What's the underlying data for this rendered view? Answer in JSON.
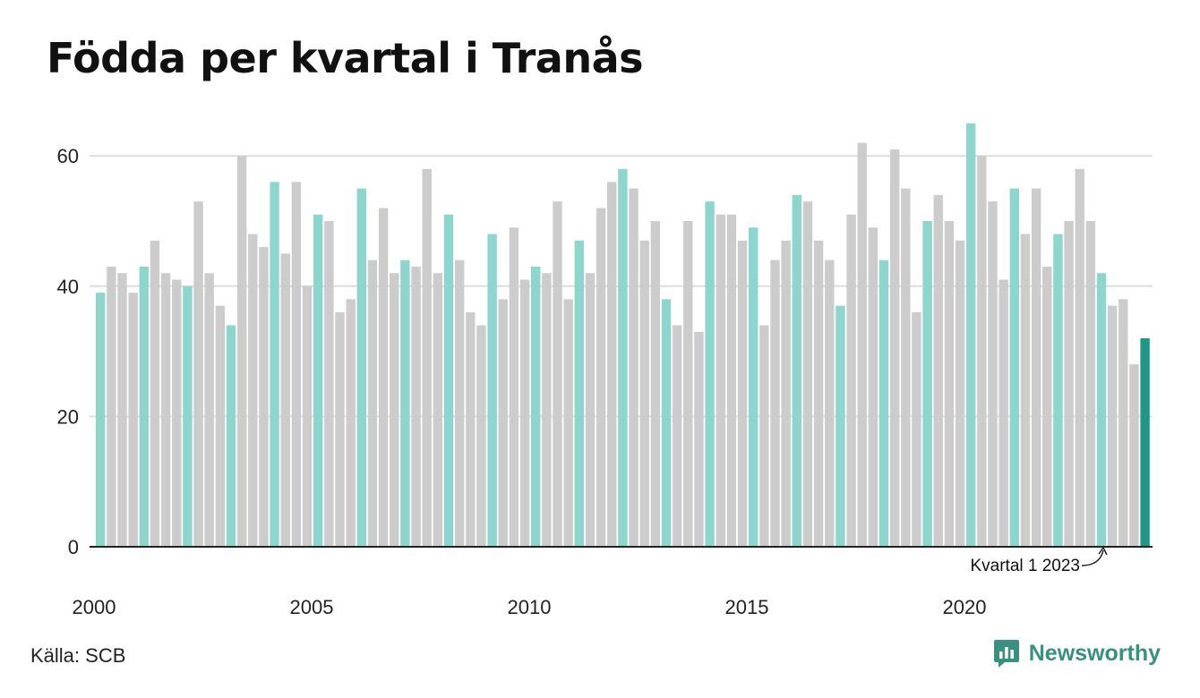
{
  "title": "Födda per kvartal i Tranås",
  "source": "Källa: SCB",
  "brand": {
    "name": "Newsworthy",
    "icon": "newsworthy-logo-icon"
  },
  "colors": {
    "q1": "#8dd5cd",
    "other": "#cccccc",
    "highlight": "#1f9688",
    "grid": "#dddddd",
    "axis": "#222222",
    "brand": "#3a8f80"
  },
  "chart_data": {
    "type": "bar",
    "ylim": [
      0,
      66
    ],
    "yticks": [
      0,
      20,
      40,
      60
    ],
    "xtick_labels": [
      "2000",
      "2005",
      "2010",
      "2015",
      "2020"
    ],
    "grid": true,
    "start_year": 2000,
    "quarters_per_year": 4,
    "values": [
      39,
      43,
      42,
      39,
      43,
      47,
      42,
      41,
      40,
      53,
      42,
      37,
      34,
      60,
      48,
      46,
      56,
      45,
      56,
      40,
      51,
      50,
      36,
      38,
      55,
      44,
      52,
      42,
      44,
      43,
      58,
      42,
      51,
      44,
      36,
      34,
      48,
      38,
      49,
      41,
      43,
      42,
      53,
      38,
      47,
      42,
      52,
      56,
      58,
      55,
      47,
      50,
      38,
      34,
      50,
      33,
      53,
      51,
      51,
      47,
      49,
      34,
      44,
      47,
      54,
      53,
      47,
      44,
      37,
      51,
      62,
      49,
      44,
      61,
      55,
      36,
      50,
      54,
      50,
      47,
      65,
      60,
      53,
      41,
      55,
      48,
      55,
      43,
      48,
      50,
      58,
      50,
      42,
      37,
      38,
      28,
      32
    ],
    "annotation": {
      "text": "Kvartal 1 2023"
    }
  }
}
